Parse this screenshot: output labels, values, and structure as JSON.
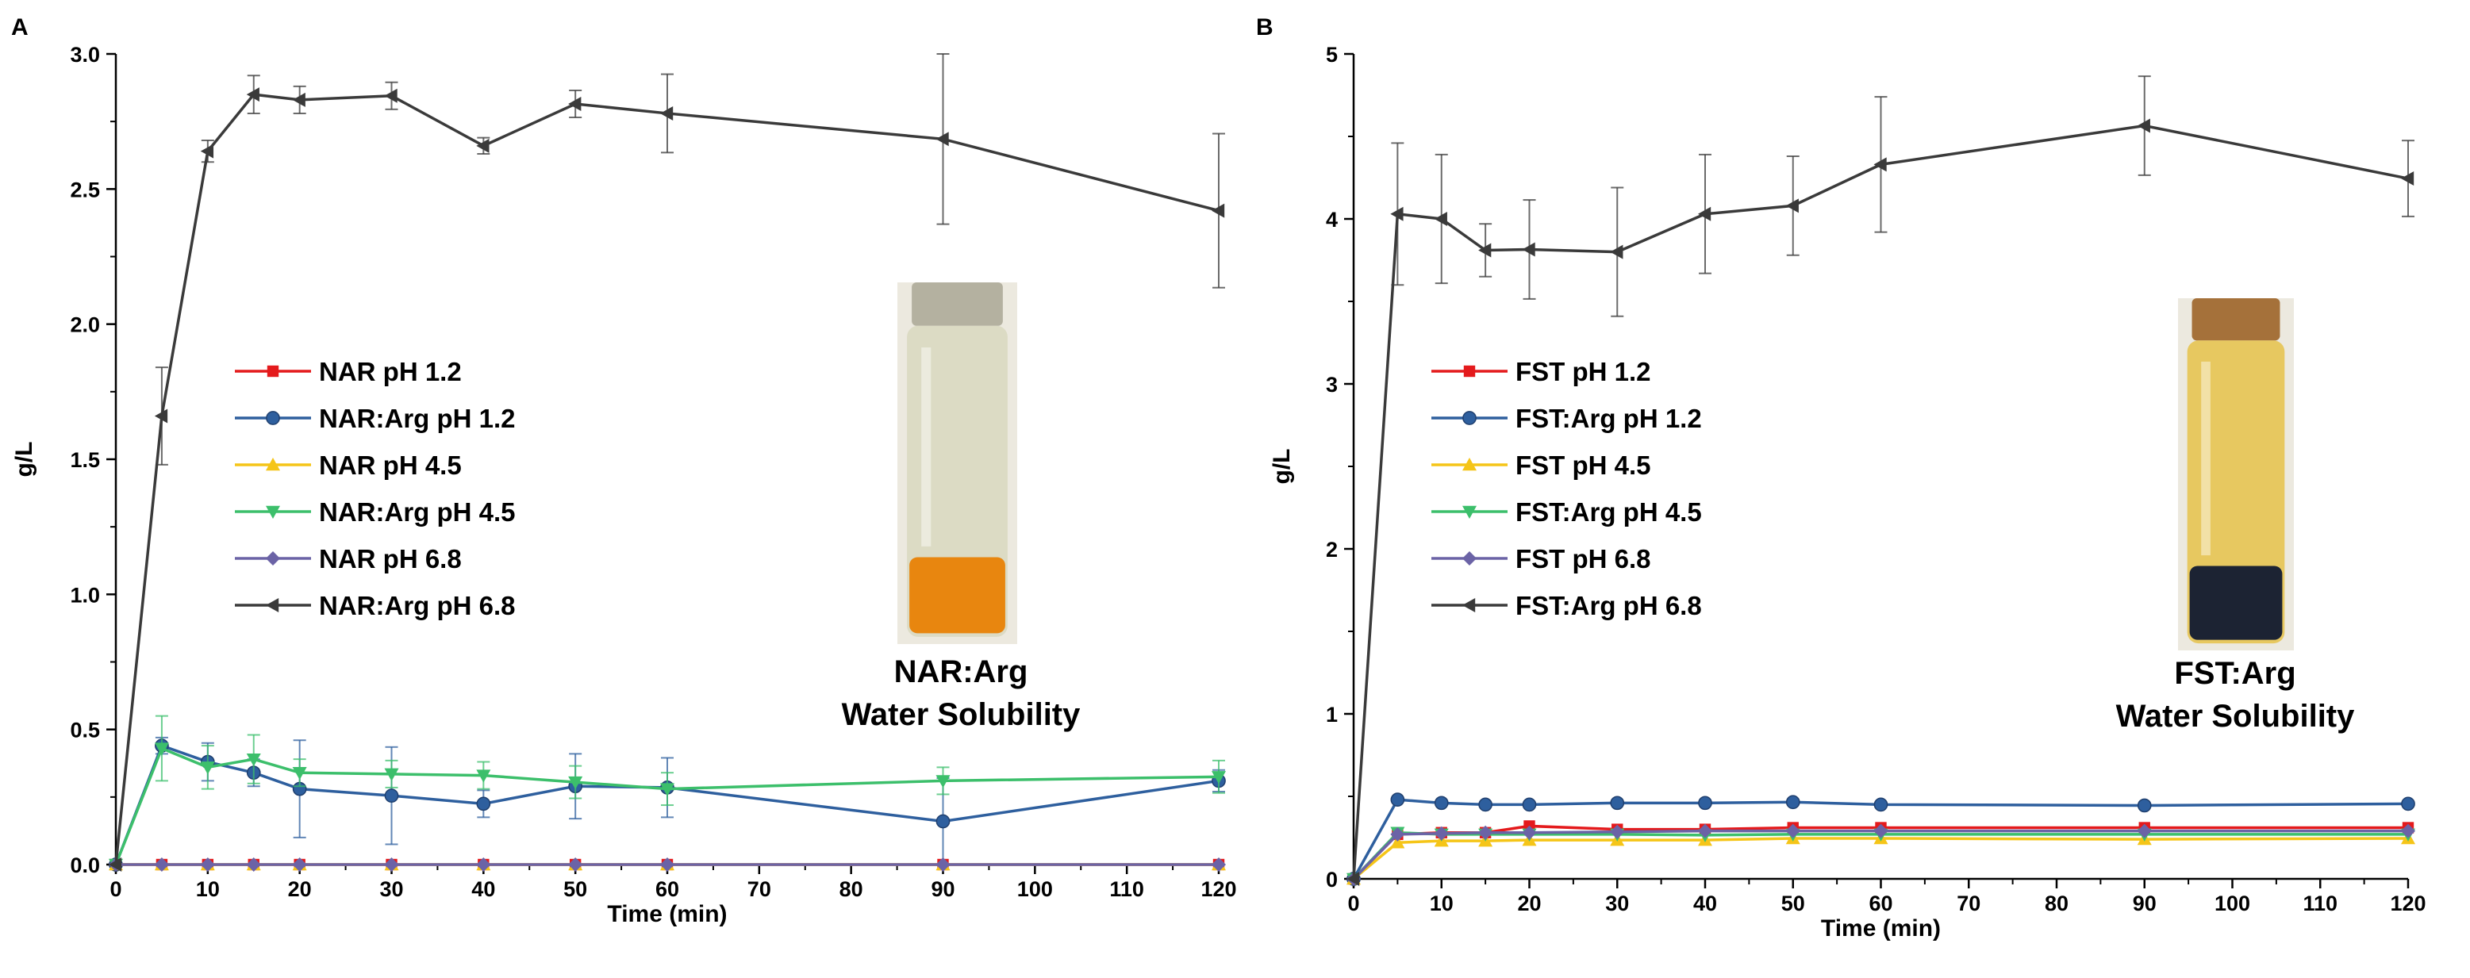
{
  "figure": {
    "marker_shapes": [
      "square",
      "circle",
      "triangle-up",
      "triangle-down",
      "diamond",
      "triangle-left"
    ]
  },
  "chart_data": [
    {
      "type": "line",
      "panel": "A",
      "xlabel": "Time (min)",
      "ylabel": "g/L",
      "xlim": [
        0,
        120
      ],
      "ylim": [
        0,
        3.0
      ],
      "x_ticks": [
        0,
        10,
        20,
        30,
        40,
        50,
        60,
        70,
        80,
        90,
        100,
        110,
        120
      ],
      "y_ticks": [
        0.0,
        0.5,
        1.0,
        1.5,
        2.0,
        2.5,
        3.0
      ],
      "y_tick_labels": [
        "0.0",
        "0.5",
        "1.0",
        "1.5",
        "2.0",
        "2.5",
        "3.0"
      ],
      "x": [
        0,
        5,
        10,
        15,
        20,
        30,
        40,
        50,
        60,
        90,
        120
      ],
      "grid": false,
      "legend_position": "center-left",
      "caption_lines": [
        "NAR:Arg",
        "Water Solubility"
      ],
      "photo": {
        "name": "vial-photo-nar",
        "glass": "#d9d8c0",
        "liquid": "#e8860f",
        "cap": "#b4b1a0"
      },
      "series": [
        {
          "name": "NAR pH 1.2",
          "color": "#e41a1c",
          "marker": "square",
          "values": [
            0,
            0,
            0,
            0,
            0,
            0,
            0,
            0,
            0,
            0,
            0
          ]
        },
        {
          "name": "NAR:Arg pH 1.2",
          "color": "#2e5f9e",
          "marker": "circle",
          "values": [
            0,
            0.44,
            0.38,
            0.34,
            0.28,
            0.255,
            0.225,
            0.29,
            0.285,
            0.16,
            0.31
          ],
          "errors": [
            0,
            0.03,
            0.07,
            0.05,
            0.18,
            0.18,
            0.05,
            0.12,
            0.11,
            0.16,
            0.04
          ]
        },
        {
          "name": "NAR pH 4.5",
          "color": "#f5c518",
          "marker": "triangle-up",
          "values": [
            0,
            0,
            0,
            0,
            0,
            0,
            0,
            0,
            0,
            0,
            0
          ]
        },
        {
          "name": "NAR:Arg pH 4.5",
          "color": "#3cbf6b",
          "marker": "triangle-down",
          "values": [
            0,
            0.43,
            0.36,
            0.39,
            0.34,
            0.335,
            0.33,
            0.305,
            0.28,
            0.31,
            0.325
          ],
          "errors": [
            0,
            0.12,
            0.08,
            0.09,
            0.05,
            0.05,
            0.05,
            0.06,
            0.06,
            0.05,
            0.06
          ]
        },
        {
          "name": "NAR pH 6.8",
          "color": "#6b63a6",
          "marker": "diamond",
          "values": [
            0,
            0,
            0,
            0,
            0,
            0,
            0,
            0,
            0,
            0,
            0
          ]
        },
        {
          "name": "NAR:Arg pH 6.8",
          "color": "#3a3a3a",
          "marker": "triangle-left",
          "values": [
            0,
            1.66,
            2.64,
            2.85,
            2.83,
            2.845,
            2.66,
            2.815,
            2.78,
            2.685,
            2.42
          ],
          "errors": [
            0,
            0.18,
            0.04,
            0.07,
            0.05,
            0.05,
            0.03,
            0.05,
            0.145,
            0.315,
            0.285
          ]
        }
      ]
    },
    {
      "type": "line",
      "panel": "B",
      "xlabel": "Time (min)",
      "ylabel": "g/L",
      "xlim": [
        0,
        120
      ],
      "ylim": [
        0,
        5
      ],
      "x_ticks": [
        0,
        10,
        20,
        30,
        40,
        50,
        60,
        70,
        80,
        90,
        100,
        110,
        120
      ],
      "y_ticks": [
        0,
        1,
        2,
        3,
        4,
        5
      ],
      "y_tick_labels": [
        "0",
        "1",
        "2",
        "3",
        "4",
        "5"
      ],
      "x": [
        0,
        5,
        10,
        15,
        20,
        30,
        40,
        50,
        60,
        90,
        120
      ],
      "grid": false,
      "legend_position": "center-left",
      "caption_lines": [
        "FST:Arg",
        "Water Solubility"
      ],
      "photo": {
        "name": "vial-photo-fst",
        "glass": "#e6c24a",
        "liquid": "#1c2333",
        "cap": "#a5713a"
      },
      "series": [
        {
          "name": "FST pH 1.2",
          "color": "#e41a1c",
          "marker": "square",
          "values": [
            0,
            0.27,
            0.28,
            0.28,
            0.32,
            0.3,
            0.3,
            0.31,
            0.31,
            0.31,
            0.31
          ]
        },
        {
          "name": "FST:Arg pH 1.2",
          "color": "#2e5f9e",
          "marker": "circle",
          "values": [
            0,
            0.48,
            0.46,
            0.45,
            0.45,
            0.46,
            0.46,
            0.465,
            0.45,
            0.445,
            0.455
          ]
        },
        {
          "name": "FST pH 4.5",
          "color": "#f5c518",
          "marker": "triangle-up",
          "values": [
            0,
            0.22,
            0.23,
            0.23,
            0.235,
            0.235,
            0.235,
            0.245,
            0.245,
            0.24,
            0.245
          ]
        },
        {
          "name": "FST:Arg pH 4.5",
          "color": "#3cbf6b",
          "marker": "triangle-down",
          "values": [
            0,
            0.28,
            0.27,
            0.27,
            0.27,
            0.27,
            0.265,
            0.27,
            0.27,
            0.27,
            0.27
          ]
        },
        {
          "name": "FST pH 6.8",
          "color": "#6b63a6",
          "marker": "diamond",
          "values": [
            0,
            0.27,
            0.275,
            0.28,
            0.28,
            0.285,
            0.29,
            0.29,
            0.29,
            0.29,
            0.29
          ]
        },
        {
          "name": "FST:Arg pH 6.8",
          "color": "#3a3a3a",
          "marker": "triangle-left",
          "values": [
            0,
            4.03,
            4.0,
            3.81,
            3.815,
            3.8,
            4.03,
            4.08,
            4.33,
            4.565,
            4.245
          ],
          "errors": [
            0,
            0.43,
            0.39,
            0.16,
            0.3,
            0.39,
            0.36,
            0.3,
            0.41,
            0.3,
            0.23
          ]
        }
      ]
    }
  ]
}
